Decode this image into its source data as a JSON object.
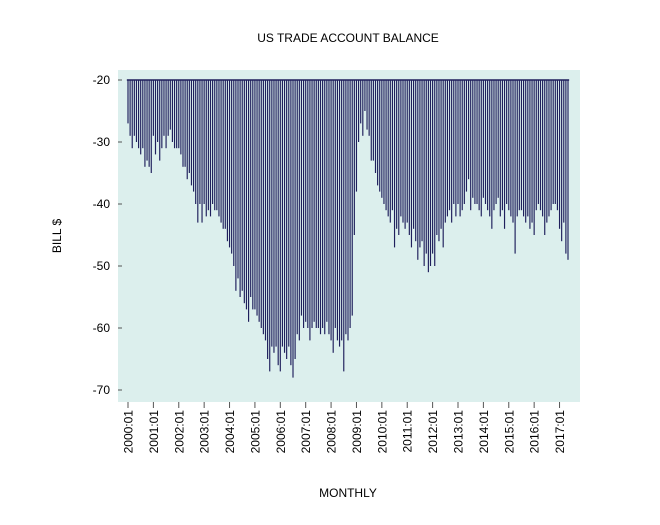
{
  "chart_data": {
    "type": "bar",
    "title": "US TRADE ACCOUNT BALANCE",
    "xlabel": "MONTHLY",
    "ylabel": "BILL $",
    "baseline": -20,
    "ylim": [
      -72,
      -18
    ],
    "y_ticks": [
      -20,
      -30,
      -40,
      -50,
      -60,
      -70
    ],
    "x_tick_labels": [
      "2000:01",
      "2001:01",
      "2002:01",
      "2003:01",
      "2004:01",
      "2005:01",
      "2006:01",
      "2007:01",
      "2008:01",
      "2009:01",
      "2010:01",
      "2011:01",
      "2012:01",
      "2013:01",
      "2014:01",
      "2015:01",
      "2016:01",
      "2017:01"
    ],
    "grid": false,
    "legend": "none",
    "colors": {
      "bar": "#1f1f5c",
      "plot_bg": "#dcefed"
    },
    "categories_start": "2000:01",
    "values": [
      -27,
      -29,
      -31,
      -29,
      -30,
      -31,
      -32,
      -31,
      -34,
      -33,
      -34,
      -35,
      -29,
      -32,
      -30,
      -33,
      -31,
      -29,
      -31,
      -29,
      -28,
      -30,
      -31,
      -31,
      -31,
      -32,
      -34,
      -34,
      -36,
      -35,
      -37,
      -38,
      -40,
      -43,
      -40,
      -43,
      -40,
      -42,
      -41,
      -42,
      -40,
      -41,
      -41,
      -42,
      -43,
      -44,
      -44,
      -46,
      -47,
      -48,
      -50,
      -54,
      -52,
      -55,
      -54,
      -56,
      -57,
      -59,
      -55,
      -57,
      -57,
      -58,
      -59,
      -60,
      -61,
      -62,
      -65,
      -67,
      -63,
      -64,
      -63,
      -66,
      -67,
      -63,
      -64,
      -65,
      -63,
      -66,
      -68,
      -65,
      -61,
      -62,
      -58,
      -60,
      -59,
      -60,
      -62,
      -60,
      -59,
      -60,
      -60,
      -61,
      -60,
      -61,
      -59,
      -61,
      -62,
      -64,
      -60,
      -62,
      -63,
      -62,
      -67,
      -61,
      -62,
      -60,
      -58,
      -45,
      -38,
      -30,
      -27,
      -29,
      -25,
      -28,
      -29,
      -33,
      -33,
      -35,
      -37,
      -38,
      -39,
      -40,
      -41,
      -42,
      -43,
      -41,
      -47,
      -44,
      -45,
      -42,
      -43,
      -44,
      -43,
      -45,
      -47,
      -44,
      -46,
      -49,
      -47,
      -46,
      -50,
      -48,
      -51,
      -50,
      -48,
      -50,
      -45,
      -46,
      -44,
      -47,
      -43,
      -42,
      -41,
      -43,
      -40,
      -42,
      -40,
      -42,
      -41,
      -40,
      -38,
      -36,
      -41,
      -39,
      -40,
      -40,
      -41,
      -42,
      -39,
      -40,
      -41,
      -42,
      -44,
      -41,
      -40,
      -39,
      -42,
      -41,
      -44,
      -40,
      -41,
      -42,
      -43,
      -48,
      -42,
      -41,
      -41,
      -42,
      -43,
      -42,
      -44,
      -43,
      -45,
      -41,
      -40,
      -41,
      -42,
      -45,
      -43,
      -42,
      -41,
      -40,
      -40,
      -41,
      -44,
      -46,
      -43,
      -48,
      -49
    ]
  }
}
